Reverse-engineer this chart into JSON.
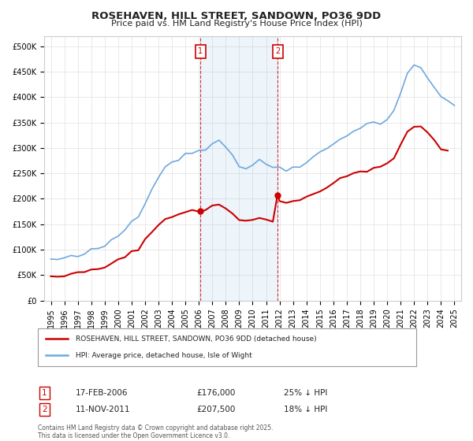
{
  "title": "ROSEHAVEN, HILL STREET, SANDOWN, PO36 9DD",
  "subtitle": "Price paid vs. HM Land Registry's House Price Index (HPI)",
  "hpi_color": "#6fa8dc",
  "price_color": "#cc0000",
  "marker1_date": 2006.12,
  "marker2_date": 2011.85,
  "sale1_label": "17-FEB-2006",
  "sale1_price": "£176,000",
  "sale1_pct": "25% ↓ HPI",
  "sale2_label": "11-NOV-2011",
  "sale2_price": "£207,500",
  "sale2_pct": "18% ↓ HPI",
  "ylim": [
    0,
    520000
  ],
  "xlim": [
    1994.5,
    2025.5
  ],
  "ylabel_ticks": [
    0,
    50000,
    100000,
    150000,
    200000,
    250000,
    300000,
    350000,
    400000,
    450000,
    500000
  ],
  "xlabel_ticks": [
    1995,
    1996,
    1997,
    1998,
    1999,
    2000,
    2001,
    2002,
    2003,
    2004,
    2005,
    2006,
    2007,
    2008,
    2009,
    2010,
    2011,
    2012,
    2013,
    2014,
    2015,
    2016,
    2017,
    2018,
    2019,
    2020,
    2021,
    2022,
    2023,
    2024,
    2025
  ],
  "background_color": "#ffffff",
  "grid_color": "#e0e0e0",
  "footer": "Contains HM Land Registry data © Crown copyright and database right 2025.\nThis data is licensed under the Open Government Licence v3.0."
}
